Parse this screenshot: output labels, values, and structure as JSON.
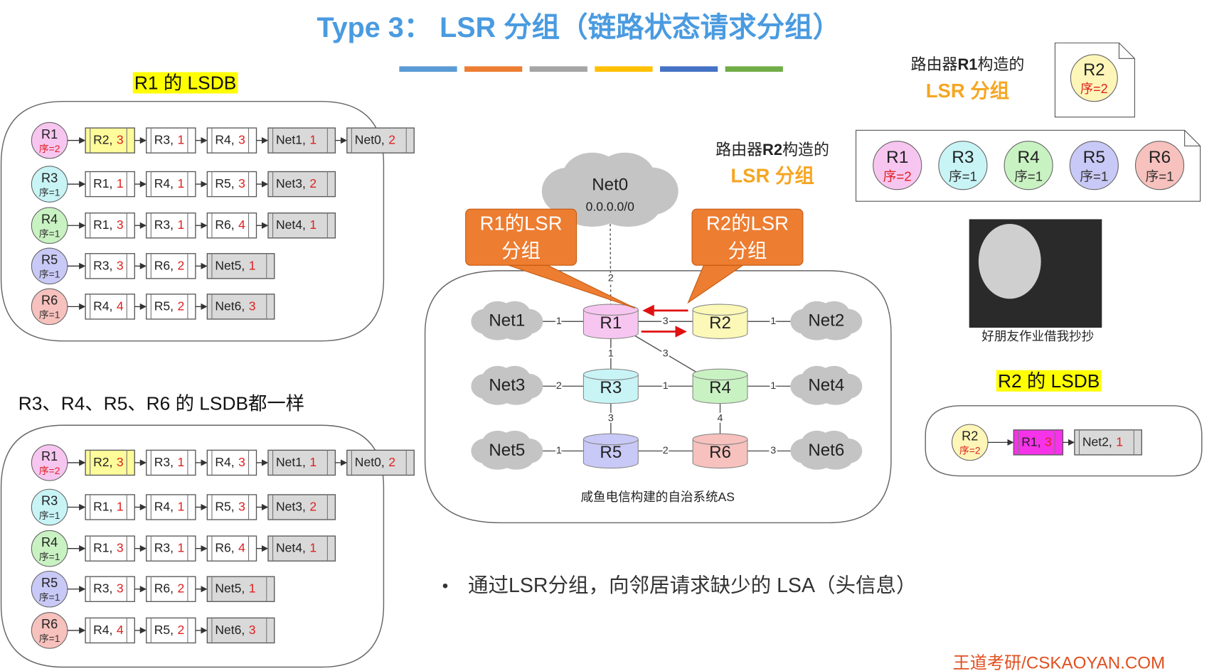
{
  "header": {
    "title": "Type 3：  LSR 分组（链路状态请求分组）",
    "bar_colors": [
      "#5b9bd5",
      "#ed7d31",
      "#a5a5a5",
      "#ffc000",
      "#4472c4",
      "#70ad47"
    ]
  },
  "lsdb_r1": {
    "label": "R1 的 LSDB",
    "highlight": "#ffff00",
    "rows": [
      {
        "head": {
          "name": "R1",
          "seq": "序=2",
          "color": "#f7c6f0",
          "seq_color": "#e02020"
        },
        "cells": [
          {
            "label": "R2,",
            "cost": 3,
            "fill": "#fdfb9a"
          },
          {
            "label": "R3,",
            "cost": 1
          },
          {
            "label": "R4,",
            "cost": 3
          },
          {
            "label": "Net1,",
            "cost": 1,
            "fill": "#d9d9d9"
          },
          {
            "label": "Net0,",
            "cost": 2,
            "fill": "#d9d9d9"
          }
        ]
      },
      {
        "head": {
          "name": "R3",
          "seq": "序=1",
          "color": "#c8f4f6",
          "seq_color": "#333"
        },
        "cells": [
          {
            "label": "R1,",
            "cost": 1
          },
          {
            "label": "R4,",
            "cost": 1
          },
          {
            "label": "R5,",
            "cost": 3
          },
          {
            "label": "Net3,",
            "cost": 2,
            "fill": "#d9d9d9"
          }
        ]
      },
      {
        "head": {
          "name": "R4",
          "seq": "序=1",
          "color": "#c9f2c2",
          "seq_color": "#333"
        },
        "cells": [
          {
            "label": "R1,",
            "cost": 3
          },
          {
            "label": "R3,",
            "cost": 1
          },
          {
            "label": "R6,",
            "cost": 4
          },
          {
            "label": "Net4,",
            "cost": 1,
            "fill": "#d9d9d9"
          }
        ]
      },
      {
        "head": {
          "name": "R5",
          "seq": "序=1",
          "color": "#c9c9f7",
          "seq_color": "#333"
        },
        "cells": [
          {
            "label": "R3,",
            "cost": 3
          },
          {
            "label": "R6,",
            "cost": 2
          },
          {
            "label": "Net5,",
            "cost": 1,
            "fill": "#d9d9d9"
          }
        ]
      },
      {
        "head": {
          "name": "R6",
          "seq": "序=1",
          "color": "#f7c1bd",
          "seq_color": "#333"
        },
        "cells": [
          {
            "label": "R4,",
            "cost": 4
          },
          {
            "label": "R5,",
            "cost": 2
          },
          {
            "label": "Net6,",
            "cost": 3,
            "fill": "#d9d9d9"
          }
        ]
      }
    ]
  },
  "lsdb_others": {
    "label": "R3、R4、R5、R6 的 LSDB都一样",
    "rows": [
      {
        "head": {
          "name": "R1",
          "seq": "序=2",
          "color": "#f7c6f0",
          "seq_color": "#e02020"
        },
        "cells": [
          {
            "label": "R2,",
            "cost": 3,
            "fill": "#fdfb9a"
          },
          {
            "label": "R3,",
            "cost": 1
          },
          {
            "label": "R4,",
            "cost": 3
          },
          {
            "label": "Net1,",
            "cost": 1,
            "fill": "#d9d9d9"
          },
          {
            "label": "Net0,",
            "cost": 2,
            "fill": "#d9d9d9"
          }
        ]
      },
      {
        "head": {
          "name": "R3",
          "seq": "序=1",
          "color": "#c8f4f6",
          "seq_color": "#333"
        },
        "cells": [
          {
            "label": "R1,",
            "cost": 1
          },
          {
            "label": "R4,",
            "cost": 1
          },
          {
            "label": "R5,",
            "cost": 3
          },
          {
            "label": "Net3,",
            "cost": 2,
            "fill": "#d9d9d9"
          }
        ]
      },
      {
        "head": {
          "name": "R4",
          "seq": "序=1",
          "color": "#c9f2c2",
          "seq_color": "#333"
        },
        "cells": [
          {
            "label": "R1,",
            "cost": 3
          },
          {
            "label": "R3,",
            "cost": 1
          },
          {
            "label": "R6,",
            "cost": 4
          },
          {
            "label": "Net4,",
            "cost": 1,
            "fill": "#d9d9d9"
          }
        ]
      },
      {
        "head": {
          "name": "R5",
          "seq": "序=1",
          "color": "#c9c9f7",
          "seq_color": "#333"
        },
        "cells": [
          {
            "label": "R3,",
            "cost": 3
          },
          {
            "label": "R6,",
            "cost": 2
          },
          {
            "label": "Net5,",
            "cost": 1,
            "fill": "#d9d9d9"
          }
        ]
      },
      {
        "head": {
          "name": "R6",
          "seq": "序=1",
          "color": "#f7c1bd",
          "seq_color": "#333"
        },
        "cells": [
          {
            "label": "R4,",
            "cost": 4
          },
          {
            "label": "R5,",
            "cost": 2
          },
          {
            "label": "Net6,",
            "cost": 3,
            "fill": "#d9d9d9"
          }
        ]
      }
    ]
  },
  "lsdb_r2": {
    "label": "R2 的 LSDB",
    "highlight": "#ffff00",
    "rows": [
      {
        "head": {
          "name": "R2",
          "seq": "序=2",
          "color": "#fdf6b8",
          "seq_color": "#e02020"
        },
        "cells": [
          {
            "label": "R1,",
            "cost": 3,
            "fill": "#f533e8"
          },
          {
            "label": "Net2,",
            "cost": 1,
            "fill": "#d9d9d9"
          }
        ]
      }
    ]
  },
  "lsr_r1": {
    "caption": [
      "路由器",
      "R1",
      "构造的"
    ],
    "label": "LSR 分组",
    "nodes": [
      {
        "name": "R2",
        "seq": "序=2",
        "color": "#fdf6b8",
        "seq_color": "#e02020"
      }
    ]
  },
  "lsr_r2": {
    "caption": [
      "路由器",
      "R2",
      "构造的"
    ],
    "label": "LSR 分组",
    "nodes": [
      {
        "name": "R1",
        "seq": "序=2",
        "color": "#f7c6f0",
        "seq_color": "#e02020"
      },
      {
        "name": "R3",
        "seq": "序=1",
        "color": "#c8f4f6",
        "seq_color": "#333"
      },
      {
        "name": "R4",
        "seq": "序=1",
        "color": "#c9f2c2",
        "seq_color": "#333"
      },
      {
        "name": "R5",
        "seq": "序=1",
        "color": "#c9c9f7",
        "seq_color": "#333"
      },
      {
        "name": "R6",
        "seq": "序=1",
        "color": "#f7c1bd",
        "seq_color": "#333"
      }
    ]
  },
  "meme": {
    "caption": "好朋友作业借我抄抄"
  },
  "network": {
    "caption": "咸鱼电信构建的自治系统AS",
    "callouts": [
      [
        "R1的LSR",
        "分组"
      ],
      [
        "R2的LSR",
        "分组"
      ]
    ],
    "nodes": [
      {
        "label": "R1",
        "color": "#f7c6f0"
      },
      {
        "label": "R2",
        "color": "#fbf8b8"
      },
      {
        "label": "R3",
        "color": "#c8f4f6"
      },
      {
        "label": "R4",
        "color": "#c9f2c2"
      },
      {
        "label": "R5",
        "color": "#c9c9f7"
      },
      {
        "label": "R6",
        "color": "#f7c1bd"
      },
      {
        "label": "Net0",
        "sub": "0.0.0.0/0"
      },
      {
        "label": "Net1"
      },
      {
        "label": "Net2"
      },
      {
        "label": "Net3"
      },
      {
        "label": "Net4"
      },
      {
        "label": "Net5"
      },
      {
        "label": "Net6"
      }
    ],
    "edges": [
      {
        "from": 6,
        "to": 0,
        "cost": 2
      },
      {
        "from": 7,
        "to": 0,
        "cost": 1
      },
      {
        "from": 0,
        "to": 1,
        "cost": 3
      },
      {
        "from": 1,
        "to": 8,
        "cost": 1
      },
      {
        "from": 0,
        "to": 2,
        "cost": 1
      },
      {
        "from": 0,
        "to": 3,
        "cost": 3
      },
      {
        "from": 9,
        "to": 2,
        "cost": 2
      },
      {
        "from": 2,
        "to": 3,
        "cost": 1
      },
      {
        "from": 3,
        "to": 10,
        "cost": 1
      },
      {
        "from": 2,
        "to": 4,
        "cost": 3
      },
      {
        "from": 3,
        "to": 5,
        "cost": 4
      },
      {
        "from": 11,
        "to": 4,
        "cost": 1
      },
      {
        "from": 4,
        "to": 5,
        "cost": 2
      },
      {
        "from": 5,
        "to": 12,
        "cost": 3
      }
    ]
  },
  "bullet": {
    "text": "通过LSR分组，向邻居请求缺少的 LSA（头信息）"
  },
  "footer": {
    "text": "王道考研/CSKAOYAN.COM"
  }
}
